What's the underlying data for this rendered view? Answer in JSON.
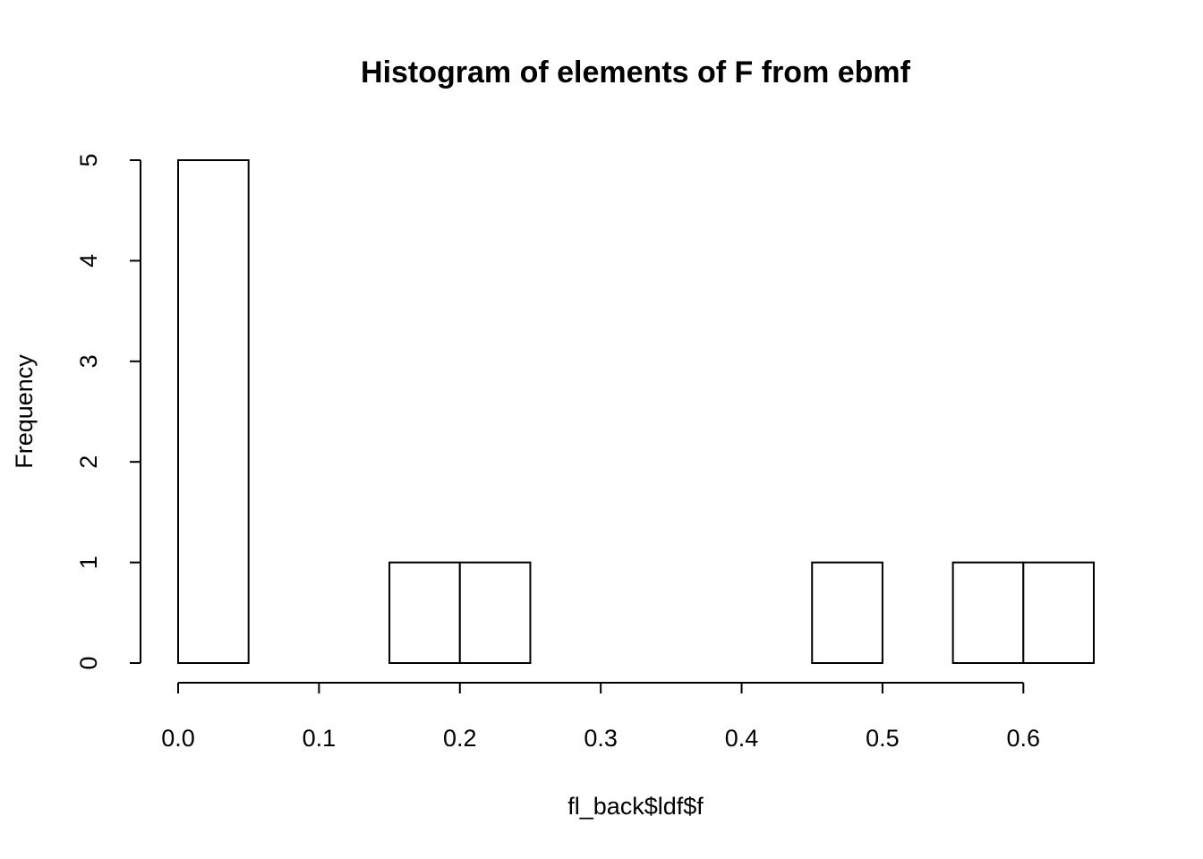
{
  "chart_data": {
    "type": "bar",
    "title": "Histogram of elements of F from ebmf",
    "xlabel": "fl_back$ldf$f",
    "ylabel": "Frequency",
    "bins": [
      {
        "from": 0.0,
        "to": 0.05,
        "count": 5
      },
      {
        "from": 0.05,
        "to": 0.1,
        "count": 0
      },
      {
        "from": 0.1,
        "to": 0.15,
        "count": 0
      },
      {
        "from": 0.15,
        "to": 0.2,
        "count": 1
      },
      {
        "from": 0.2,
        "to": 0.25,
        "count": 1
      },
      {
        "from": 0.25,
        "to": 0.3,
        "count": 0
      },
      {
        "from": 0.3,
        "to": 0.35,
        "count": 0
      },
      {
        "from": 0.35,
        "to": 0.4,
        "count": 0
      },
      {
        "from": 0.4,
        "to": 0.45,
        "count": 0
      },
      {
        "from": 0.45,
        "to": 0.5,
        "count": 1
      },
      {
        "from": 0.5,
        "to": 0.55,
        "count": 0
      },
      {
        "from": 0.55,
        "to": 0.6,
        "count": 1
      },
      {
        "from": 0.6,
        "to": 0.65,
        "count": 1
      }
    ],
    "xlim": [
      0,
      0.65
    ],
    "ylim": [
      0,
      5
    ],
    "x_ticks": [
      "0.0",
      "0.1",
      "0.2",
      "0.3",
      "0.4",
      "0.5",
      "0.6"
    ],
    "y_ticks": [
      "0",
      "1",
      "2",
      "3",
      "4",
      "5"
    ],
    "grid": false,
    "legend": "none"
  }
}
